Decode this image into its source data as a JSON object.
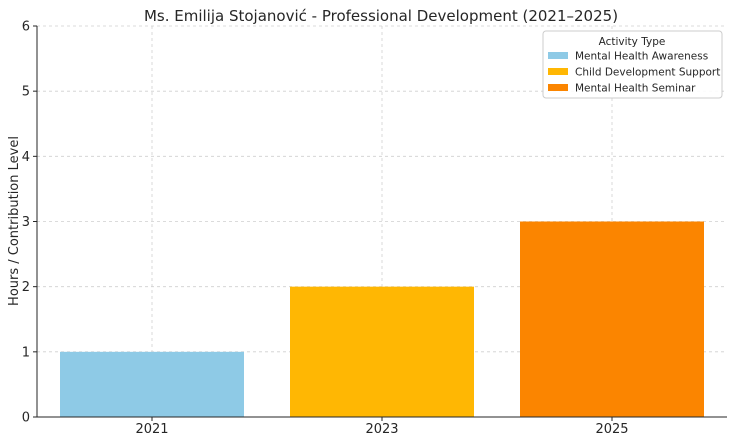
{
  "chart_data": {
    "type": "bar",
    "title": "Ms. Emilija Stojanović - Professional Development (2021–2025)",
    "xlabel": "",
    "ylabel": "Hours / Contribution Level",
    "categories": [
      "2021",
      "2023",
      "2025"
    ],
    "values": [
      1,
      2,
      3
    ],
    "bar_labels": [
      "Mental Health Awareness",
      "Child Development Support",
      "Mental Health Seminar"
    ],
    "colors": [
      "#8ecae6",
      "#ffb703",
      "#fb8500"
    ],
    "ylim": [
      0,
      6
    ],
    "yticks": [
      0,
      1,
      2,
      3,
      4,
      5,
      6
    ],
    "grid": true,
    "legend": {
      "title": "Activity Type",
      "placement": "top-right",
      "entries": [
        "Mental Health Awareness",
        "Child Development Support",
        "Mental Health Seminar"
      ]
    }
  }
}
